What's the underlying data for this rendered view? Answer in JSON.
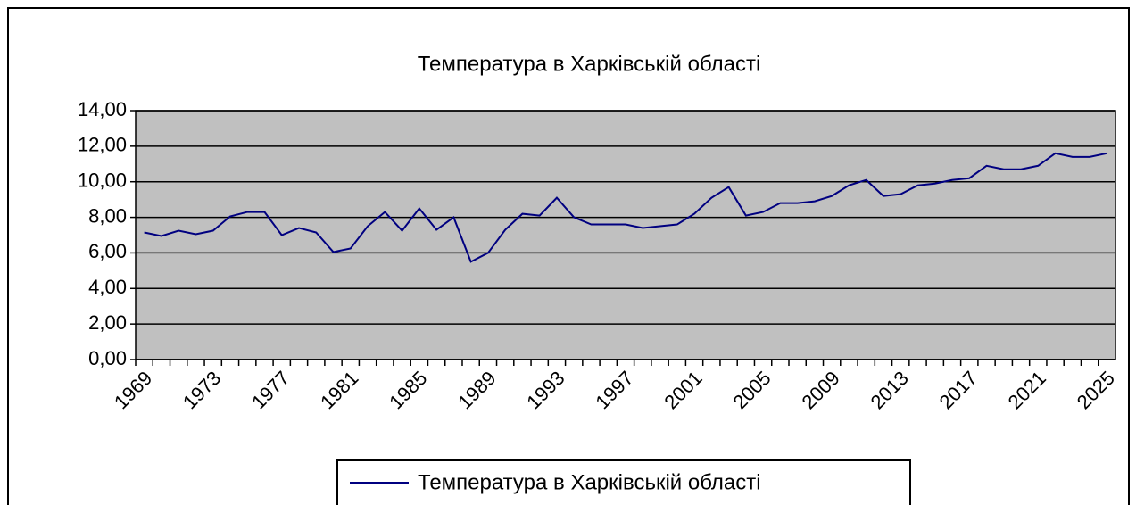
{
  "chart_data": {
    "type": "line",
    "title": "Температура в Харківській області",
    "categories": [
      "1969",
      null,
      null,
      null,
      "1973",
      null,
      null,
      null,
      "1977",
      null,
      null,
      null,
      "1981",
      null,
      null,
      null,
      "1985",
      null,
      null,
      null,
      "1989",
      null,
      null,
      null,
      "1993",
      null,
      null,
      null,
      "1997",
      null,
      null,
      null,
      "2001",
      null,
      null,
      null,
      "2005",
      null,
      null,
      null,
      "2009",
      null,
      null,
      null,
      "2013",
      null,
      null,
      null,
      "2017",
      null,
      null,
      null,
      "2021",
      null,
      null,
      null,
      "2025"
    ],
    "series": [
      {
        "name": "Температура в Харківській області",
        "color": "#000080",
        "values": [
          7.15,
          6.95,
          7.25,
          7.05,
          7.25,
          8.05,
          8.3,
          8.3,
          7.0,
          7.4,
          7.15,
          6.05,
          6.25,
          7.5,
          8.3,
          7.25,
          8.5,
          7.3,
          8.0,
          5.5,
          6.0,
          7.3,
          8.2,
          8.1,
          9.1,
          8.0,
          7.6,
          7.6,
          7.6,
          7.4,
          7.5,
          7.6,
          8.2,
          9.1,
          9.7,
          8.1,
          8.3,
          8.8,
          8.8,
          8.9,
          9.2,
          9.8,
          10.1,
          9.2,
          9.3,
          9.8,
          9.9,
          10.1,
          10.2,
          10.9,
          10.7,
          10.7,
          10.9,
          11.6,
          11.4,
          11.4,
          11.6
        ]
      }
    ],
    "ylim": [
      0,
      14
    ],
    "yticks": [
      {
        "value": 0,
        "label": "0,00"
      },
      {
        "value": 2,
        "label": "2,00"
      },
      {
        "value": 4,
        "label": "4,00"
      },
      {
        "value": 6,
        "label": "6,00"
      },
      {
        "value": 8,
        "label": "8,00"
      },
      {
        "value": 10,
        "label": "10,00"
      },
      {
        "value": 12,
        "label": "12,00"
      },
      {
        "value": 14,
        "label": "14,00"
      }
    ],
    "grid": true,
    "plot_background": "#c0c0c0",
    "legend": "bottom"
  }
}
